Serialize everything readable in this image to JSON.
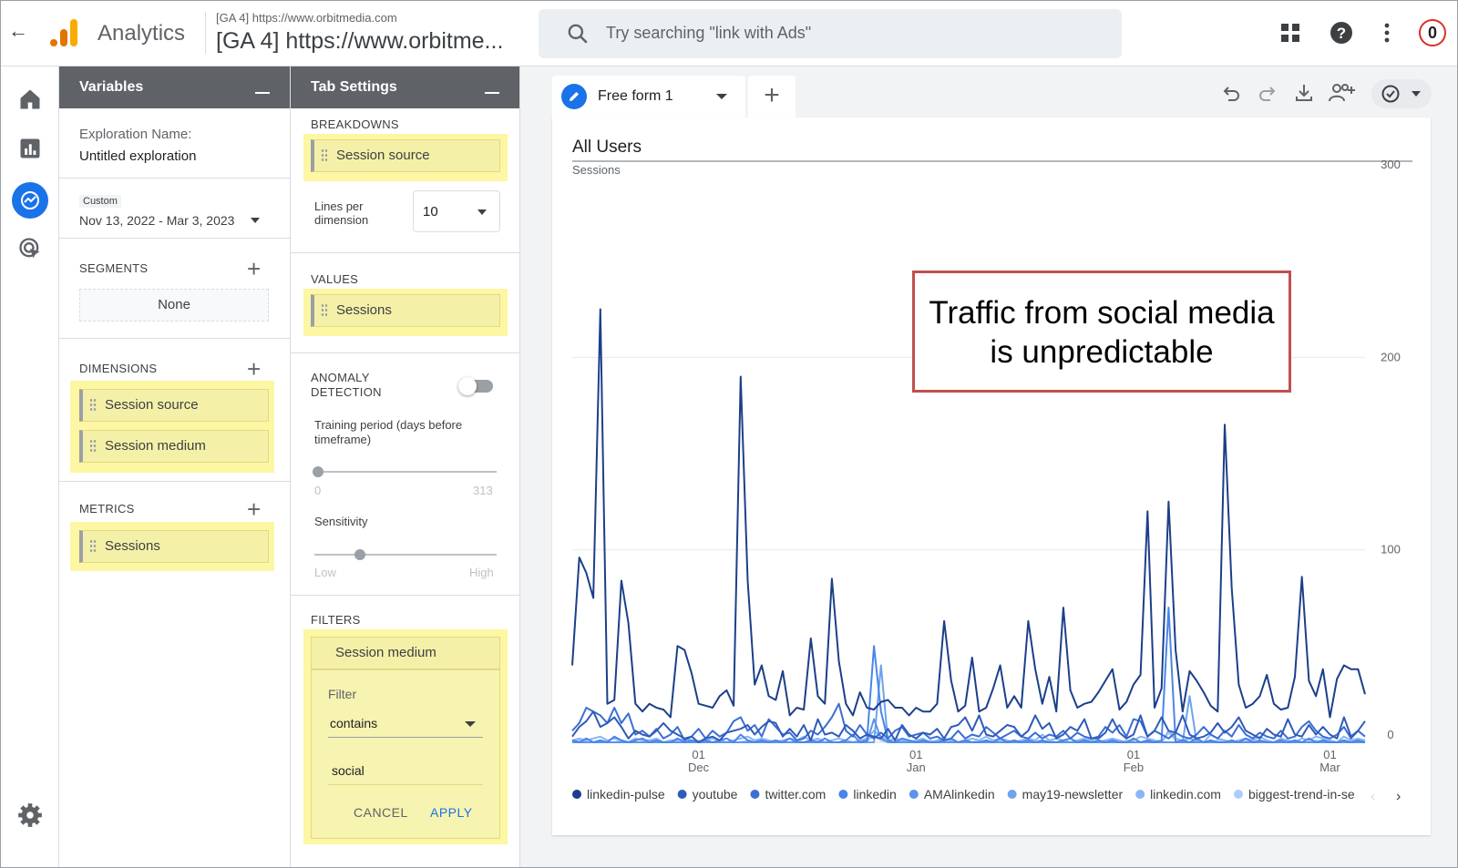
{
  "header": {
    "app_name": "Analytics",
    "property_small": "[GA 4] https://www.orbitmedia.com",
    "property_big": "[GA 4] https://www.orbitme...",
    "search_placeholder": "Try searching \"link with Ads\"",
    "notification_count": "0"
  },
  "variables": {
    "title": "Variables",
    "exploration_label": "Exploration Name:",
    "exploration_value": "Untitled exploration",
    "date_tag": "Custom",
    "date_range": "Nov 13, 2022 - Mar 3, 2023",
    "segments_title": "SEGMENTS",
    "segments_empty": "None",
    "dimensions_title": "DIMENSIONS",
    "dimensions": [
      "Session source",
      "Session medium"
    ],
    "metrics_title": "METRICS",
    "metrics": [
      "Sessions"
    ]
  },
  "tab_settings": {
    "title": "Tab Settings",
    "breakdowns_title": "BREAKDOWNS",
    "breakdown": "Session source",
    "lines_label": "Lines per dimension",
    "lines_value": "10",
    "values_title": "VALUES",
    "value": "Sessions",
    "anomaly_title": "ANOMALY DETECTION",
    "anomaly_enabled": false,
    "training_label": "Training period (days before timeframe)",
    "training_min": "0",
    "training_max": "313",
    "training_level": 0,
    "sensitivity_label": "Sensitivity",
    "sensitivity_min": "Low",
    "sensitivity_max": "High",
    "sensitivity_level": 0.25,
    "filters_title": "FILTERS",
    "filter_dimension": "Session medium",
    "filter_label": "Filter",
    "filter_op": "contains",
    "filter_value": "social",
    "cancel_label": "CANCEL",
    "apply_label": "APPLY"
  },
  "canvas": {
    "tab_label": "Free form 1",
    "annotation": "Traffic from social media is unpredictable"
  },
  "chart_data": {
    "type": "line",
    "title": "All Users",
    "ylabel": "Sessions",
    "ylim": [
      0,
      300
    ],
    "yticks": [
      0,
      100,
      200,
      300
    ],
    "x_start": "2022-11-13",
    "x_ticks": [
      {
        "date": "2022-12-01",
        "day": "01",
        "month": "Dec"
      },
      {
        "date": "2023-01-01",
        "day": "01",
        "month": "Jan"
      },
      {
        "date": "2023-02-01",
        "day": "01",
        "month": "Feb"
      },
      {
        "date": "2023-03-01",
        "day": "01",
        "month": "Mar"
      }
    ],
    "grid": true,
    "legend_position": "bottom",
    "series": [
      {
        "name": "linkedin-pulse",
        "color": "#1c3f8a",
        "values": [
          40,
          96,
          88,
          75,
          225,
          20,
          22,
          84,
          62,
          20,
          16,
          20,
          18,
          17,
          13,
          50,
          48,
          36,
          20,
          19,
          18,
          24,
          27,
          19,
          190,
          84,
          30,
          40,
          24,
          22,
          37,
          14,
          18,
          17,
          54,
          24,
          20,
          85,
          42,
          20,
          14,
          26,
          18,
          17,
          21,
          22,
          18,
          18,
          14,
          18,
          16,
          16,
          20,
          63,
          32,
          16,
          19,
          44,
          16,
          18,
          28,
          40,
          18,
          24,
          18,
          63,
          38,
          20,
          34,
          16,
          70,
          27,
          18,
          20,
          21,
          26,
          32,
          38,
          17,
          21,
          30,
          35,
          120,
          18,
          28,
          125,
          48,
          16,
          37,
          32,
          26,
          19,
          16,
          165,
          80,
          30,
          18,
          20,
          24,
          35,
          20,
          17,
          18,
          34,
          86,
          32,
          24,
          38,
          13,
          33,
          40,
          38,
          38,
          25
        ]
      },
      {
        "name": "youtube",
        "color": "#2f5bb8",
        "values": [
          3,
          8,
          11,
          16,
          8,
          10,
          13,
          8,
          2,
          6,
          4,
          3,
          6,
          10,
          6,
          4,
          2,
          3,
          0,
          2,
          3,
          1,
          5,
          6,
          7,
          9,
          4,
          8,
          11,
          10,
          3,
          7,
          3,
          9,
          1,
          12,
          4,
          5,
          3,
          9,
          6,
          2,
          4,
          3,
          2,
          7,
          1,
          9,
          4,
          2,
          5,
          4,
          7,
          2,
          8,
          9,
          13,
          6,
          14,
          4,
          3,
          6,
          9,
          8,
          3,
          6,
          14,
          7,
          10,
          2,
          4,
          8,
          6,
          12,
          2,
          2,
          5,
          12,
          5,
          2,
          4,
          14,
          3,
          6,
          13,
          6,
          5,
          14,
          4,
          2,
          3,
          5,
          10,
          5,
          8,
          13,
          6,
          4,
          2,
          7,
          4,
          3,
          12,
          4,
          3,
          9,
          4,
          8,
          4,
          2,
          13,
          3,
          6,
          11
        ]
      },
      {
        "name": "twitter.com",
        "color": "#3b6fd3",
        "values": [
          6,
          10,
          18,
          16,
          14,
          10,
          18,
          10,
          15,
          4,
          6,
          3,
          7,
          2,
          4,
          8,
          1,
          3,
          7,
          2,
          6,
          3,
          5,
          11,
          13,
          6,
          9,
          3,
          12,
          8,
          4,
          5,
          1,
          2,
          6,
          4,
          8,
          13,
          20,
          6,
          3,
          9,
          4,
          2,
          5,
          2,
          6,
          8,
          3,
          4,
          5,
          2,
          3,
          1,
          2,
          6,
          2,
          4,
          3,
          8,
          5,
          2,
          4,
          6,
          3,
          2,
          5,
          2,
          4,
          3,
          6,
          2,
          5,
          3,
          2,
          3,
          8,
          5,
          9,
          3,
          12,
          11,
          3,
          6,
          4,
          2,
          5,
          3,
          2,
          4,
          8,
          4,
          2,
          6,
          3,
          9,
          4,
          2,
          5,
          3,
          2,
          6,
          2,
          3,
          8,
          11,
          6,
          3,
          2,
          4,
          8,
          2,
          6,
          3
        ]
      },
      {
        "name": "linkedin",
        "color": "#4a86e8",
        "values": [
          1,
          0,
          2,
          0,
          1,
          0,
          3,
          1,
          0,
          1,
          2,
          0,
          1,
          0,
          0,
          2,
          0,
          1,
          0,
          1,
          0,
          1,
          2,
          0,
          4,
          1,
          0,
          1,
          0,
          1,
          0,
          2,
          0,
          0,
          1,
          0,
          2,
          0,
          0,
          1,
          4,
          0,
          1,
          50,
          16,
          1,
          0,
          2,
          1,
          0,
          1,
          0,
          0,
          1,
          2,
          0,
          1,
          0,
          0,
          1,
          0,
          2,
          0,
          1,
          0,
          1,
          0,
          1,
          0,
          0,
          1,
          2,
          0,
          1,
          0,
          1,
          0,
          1,
          0,
          0,
          2,
          0,
          1,
          0,
          1,
          70,
          0,
          1,
          0,
          2,
          0,
          1,
          0,
          0,
          1,
          0,
          2,
          0,
          1,
          0,
          0,
          1,
          0,
          1,
          0,
          2,
          0,
          1,
          0,
          0,
          1,
          0,
          1,
          0
        ]
      },
      {
        "name": "AMAlinkedin",
        "color": "#5b94ea",
        "values": [
          0,
          0,
          0,
          0,
          0,
          0,
          0,
          0,
          0,
          0,
          0,
          0,
          0,
          0,
          0,
          0,
          0,
          0,
          0,
          0,
          0,
          0,
          0,
          0,
          0,
          0,
          0,
          0,
          0,
          0,
          0,
          0,
          0,
          0,
          0,
          0,
          0,
          0,
          0,
          0,
          0,
          0,
          0,
          12,
          2,
          0,
          0,
          0,
          0,
          0,
          0,
          0,
          0,
          0,
          0,
          0,
          0,
          0,
          0,
          0,
          0,
          0,
          0,
          0,
          0,
          0,
          0,
          0,
          0,
          0,
          0,
          0,
          0,
          0,
          0,
          0,
          0,
          0,
          0,
          0,
          0,
          0,
          0,
          0,
          0,
          0,
          0,
          0,
          0,
          0,
          0,
          0,
          0,
          0,
          0,
          0,
          0,
          0,
          0,
          0,
          0,
          0,
          0,
          0,
          0,
          0,
          0,
          0,
          0,
          0,
          0,
          0,
          0,
          0
        ]
      },
      {
        "name": "may19-newsletter",
        "color": "#6ea3ee",
        "values": [
          0,
          0,
          0,
          0,
          0,
          0,
          0,
          0,
          0,
          0,
          0,
          0,
          0,
          0,
          0,
          0,
          0,
          0,
          0,
          0,
          0,
          0,
          0,
          0,
          0,
          0,
          0,
          0,
          0,
          0,
          0,
          0,
          0,
          0,
          0,
          0,
          0,
          0,
          0,
          0,
          0,
          0,
          0,
          0,
          40,
          0,
          0,
          0,
          0,
          0,
          0,
          0,
          0,
          0,
          0,
          0,
          0,
          0,
          0,
          0,
          0,
          0,
          0,
          0,
          0,
          0,
          0,
          0,
          0,
          0,
          0,
          0,
          0,
          0,
          0,
          0,
          0,
          0,
          0,
          0,
          0,
          0,
          0,
          0,
          0,
          0,
          0,
          0,
          24,
          0,
          0,
          0,
          0,
          0,
          0,
          0,
          0,
          0,
          0,
          0,
          0,
          0,
          0,
          0,
          0,
          0,
          0,
          0,
          0,
          0,
          0,
          0,
          0,
          0
        ]
      },
      {
        "name": "linkedin.com",
        "color": "#8ab4f8",
        "values": [
          1,
          2,
          1,
          2,
          3,
          1,
          2,
          1,
          0,
          2,
          1,
          1,
          2,
          0,
          1,
          1,
          2,
          1,
          0,
          1,
          2,
          1,
          0,
          1,
          2,
          3,
          1,
          2,
          1,
          0,
          1,
          2,
          1,
          3,
          1,
          2,
          0,
          1,
          2,
          1,
          0,
          1,
          2,
          6,
          3,
          1,
          2,
          1,
          0,
          1,
          2,
          0,
          1,
          2,
          1,
          0,
          1,
          2,
          1,
          3,
          1,
          2,
          1,
          0,
          1,
          2,
          1,
          4,
          1,
          2,
          1,
          0,
          1,
          2,
          1,
          0,
          1,
          2,
          1,
          0,
          1,
          3,
          2,
          1,
          0,
          6,
          2,
          1,
          2,
          1,
          0,
          4,
          2,
          1,
          0,
          1,
          2,
          1,
          3,
          1,
          0,
          2,
          1,
          0,
          2,
          1,
          3,
          2,
          1,
          0,
          3,
          1,
          2,
          1
        ]
      },
      {
        "name": "biggest-trend-in-seo",
        "color": "#aecbfa",
        "values": [
          0,
          1,
          0,
          0,
          1,
          0,
          0,
          1,
          0,
          0,
          0,
          1,
          0,
          0,
          1,
          0,
          0,
          0,
          1,
          0,
          0,
          1,
          0,
          0,
          0,
          1,
          0,
          0,
          1,
          0,
          0,
          0,
          1,
          0,
          0,
          1,
          0,
          0,
          0,
          1,
          0,
          0,
          1,
          3,
          1,
          0,
          0,
          1,
          0,
          0,
          0,
          1,
          0,
          0,
          1,
          0,
          0,
          0,
          1,
          0,
          0,
          1,
          0,
          0,
          0,
          1,
          0,
          0,
          1,
          0,
          0,
          0,
          1,
          0,
          0,
          1,
          0,
          0,
          0,
          1,
          0,
          0,
          1,
          0,
          0,
          5,
          1,
          0,
          0,
          1,
          0,
          0,
          1,
          0,
          0,
          0,
          1,
          0,
          0,
          1,
          0,
          0,
          0,
          1,
          0,
          0,
          1,
          0,
          0,
          0,
          1,
          0,
          0,
          1
        ]
      }
    ]
  }
}
